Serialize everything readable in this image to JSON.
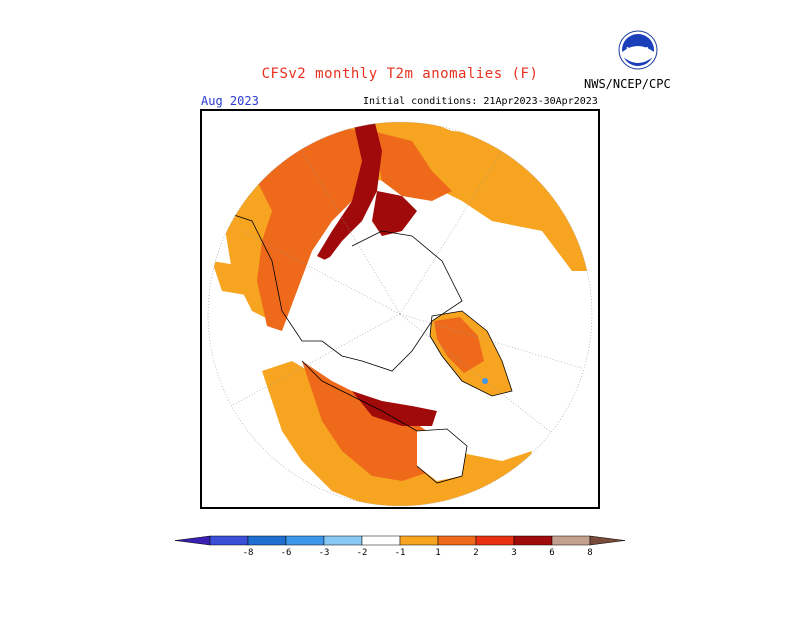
{
  "header": {
    "title": "CFSv2 monthly T2m anomalies (F)",
    "org": "NWS/NCEP/CPC",
    "month": "Aug 2023",
    "initial_conditions": "Initial conditions: 21Apr2023-30Apr2023"
  },
  "logo": {
    "text": "NOAA"
  },
  "map": {
    "projection": "north polar stereographic"
  },
  "colorbar": {
    "ticks": [
      "-8",
      "-6",
      "-3",
      "-2",
      "-1",
      "1",
      "2",
      "3",
      "6",
      "8"
    ],
    "colors": [
      "#3a20b0",
      "#3a4fd6",
      "#1e6fd0",
      "#3d98ec",
      "#88c8f5",
      "#ffffff",
      "#f7a520",
      "#ee6a1a",
      "#e83010",
      "#a10a0a",
      "#c4a08e",
      "#7a4a3a"
    ]
  }
}
